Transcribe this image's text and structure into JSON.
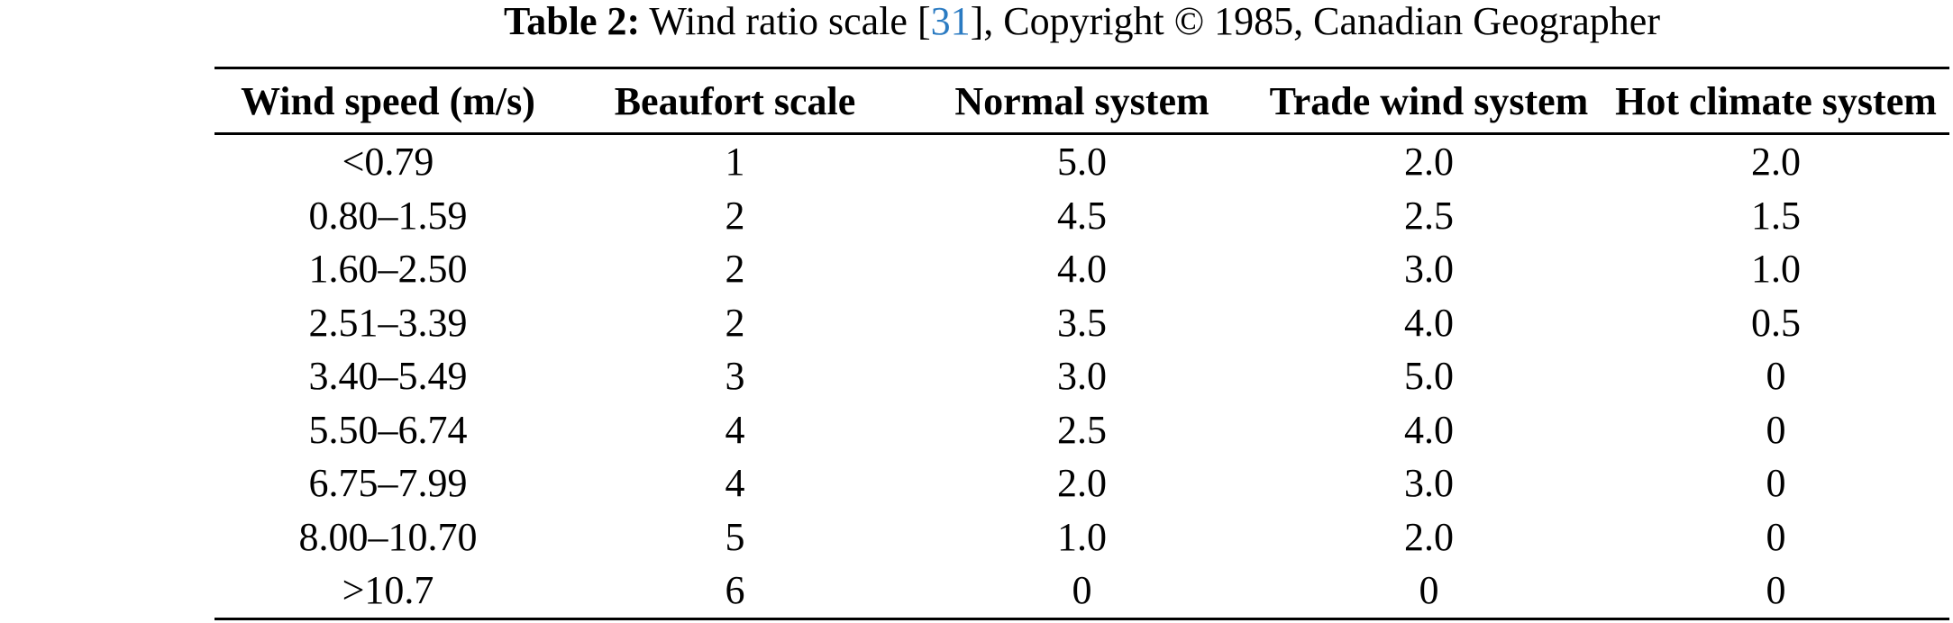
{
  "colors": {
    "background": "#ffffff",
    "text": "#000000",
    "rule": "#000000",
    "citation_link": "#2b7bc2"
  },
  "caption": {
    "label": "Table 2:",
    "text": " Wind ratio scale ",
    "ref_open": "[",
    "ref": "31",
    "ref_close": "]",
    "suffix": ", Copyright © 1985, Canadian Geographer"
  },
  "table": {
    "headers": [
      "Wind speed (m/s)",
      "Beaufort scale",
      "Normal system",
      "Trade wind system",
      "Hot climate system"
    ],
    "rows": [
      [
        "<0.79",
        "1",
        "5.0",
        "2.0",
        "2.0"
      ],
      [
        "0.80–1.59",
        "2",
        "4.5",
        "2.5",
        "1.5"
      ],
      [
        "1.60–2.50",
        "2",
        "4.0",
        "3.0",
        "1.0"
      ],
      [
        "2.51–3.39",
        "2",
        "3.5",
        "4.0",
        "0.5"
      ],
      [
        "3.40–5.49",
        "3",
        "3.0",
        "5.0",
        "0"
      ],
      [
        "5.50–6.74",
        "4",
        "2.5",
        "4.0",
        "0"
      ],
      [
        "6.75–7.99",
        "4",
        "2.0",
        "3.0",
        "0"
      ],
      [
        "8.00–10.70",
        "5",
        "1.0",
        "2.0",
        "0"
      ],
      [
        ">10.7",
        "6",
        "0",
        "0",
        "0"
      ]
    ]
  }
}
